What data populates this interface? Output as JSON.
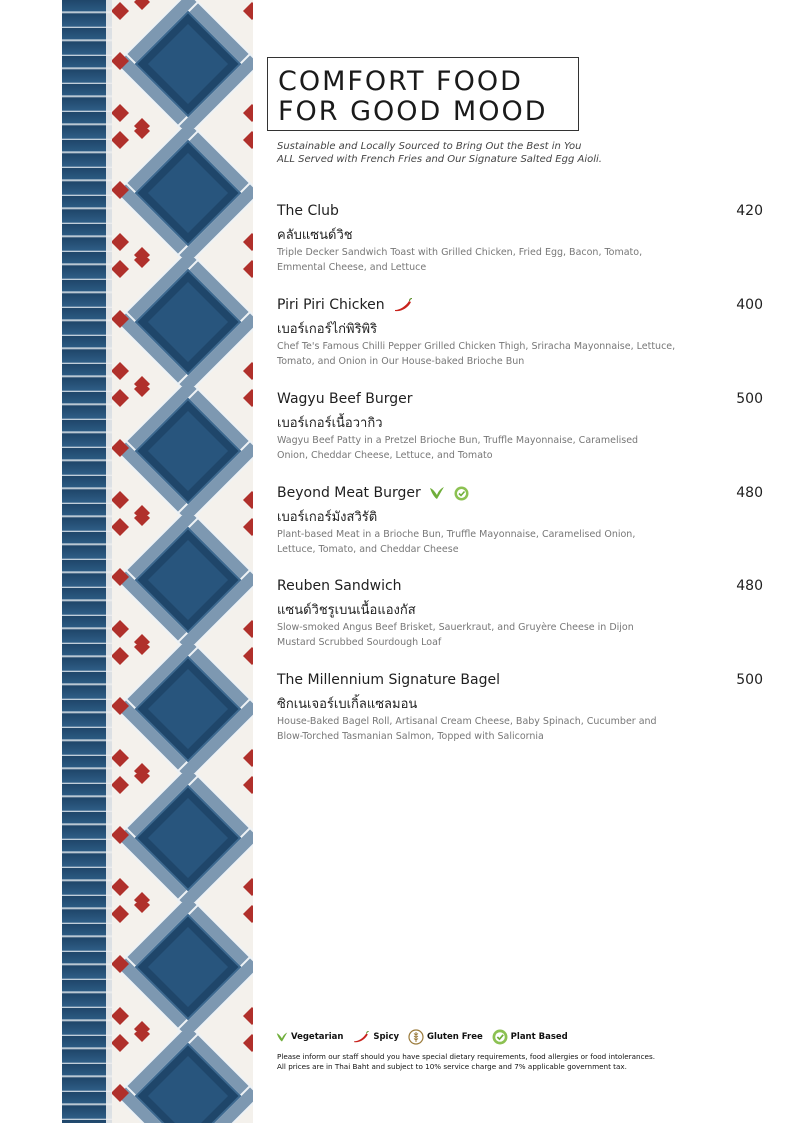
{
  "header": {
    "title_line1": "COMFORT FOOD",
    "title_line2": "FOR GOOD MOOD",
    "subtitle_line1": "Sustainable and Locally Sourced to Bring Out the Best in You",
    "subtitle_line2": "ALL Served with French Fries and Our Signature Salted Egg Aioli."
  },
  "menu": {
    "items": [
      {
        "name": "The Club",
        "thai": "คลับแซนด์วิช",
        "price": "420",
        "desc_line1": "Triple Decker Sandwich Toast with Grilled Chicken, Fried Egg, Bacon, Tomato,",
        "desc_line2": "Emmental Cheese, and Lettuce",
        "icons": []
      },
      {
        "name": "Piri Piri Chicken",
        "thai": "เบอร์เกอร์ไก่พิริพิริ",
        "price": "400",
        "desc_line1": "Chef Te's Famous Chilli Pepper Grilled Chicken Thigh, Sriracha Mayonnaise, Lettuce,",
        "desc_line2": "Tomato, and Onion in Our House-baked Brioche Bun",
        "icons": [
          "chili-icon"
        ]
      },
      {
        "name": "Wagyu Beef Burger",
        "thai": "เบอร์เกอร์เนื้อวากิว",
        "price": "500",
        "desc_line1": "Wagyu Beef Patty in a Pretzel Brioche Bun, Truffle Mayonnaise, Caramelised",
        "desc_line2": "Onion, Cheddar Cheese, Lettuce, and Tomato",
        "icons": []
      },
      {
        "name": "Beyond Meat Burger",
        "thai": "เบอร์เกอร์มังสวิรัติ",
        "price": "480",
        "desc_line1": "Plant-based Meat in a Brioche Bun, Truffle Mayonnaise, Caramelised Onion,",
        "desc_line2": "Lettuce, Tomato, and Cheddar Cheese",
        "icons": [
          "leaf-icon",
          "plant-based-icon"
        ]
      },
      {
        "name": "Reuben Sandwich",
        "thai": "แซนด์วิชรูเบนเนื้อแองกัส",
        "price": "480",
        "desc_line1": "Slow-smoked Angus Beef Brisket, Sauerkraut, and Gruyère Cheese in Dijon",
        "desc_line2": "Mustard Scrubbed Sourdough Loaf",
        "icons": []
      },
      {
        "name": "The Millennium Signature Bagel",
        "thai": "ซิกเนเจอร์เบเกิ้ลแซลมอน",
        "price": "500",
        "desc_line1": "House-Baked Bagel Roll, Artisanal Cream Cheese, Baby Spinach, Cucumber and",
        "desc_line2": "Blow-Torched Tasmanian Salmon, Topped with Salicornia",
        "icons": []
      }
    ]
  },
  "legend": {
    "vegetarian": "Vegetarian",
    "spicy": "Spicy",
    "gluten_free": "Gluten Free",
    "plant_based": "Plant Based"
  },
  "footer": {
    "note_line1": "Please inform our staff should you have special dietary requirements, food allergies or food intolerances.",
    "note_line2": "All prices are in Thai Baht and subject to 10% service charge and 7% applicable government tax."
  },
  "colors": {
    "tile_navy": "#1f466a",
    "tile_grey_blue": "#7b97b0",
    "tile_red": "#b0302b",
    "chili_red": "#c8231d",
    "leaf_green": "#6fae3a"
  }
}
